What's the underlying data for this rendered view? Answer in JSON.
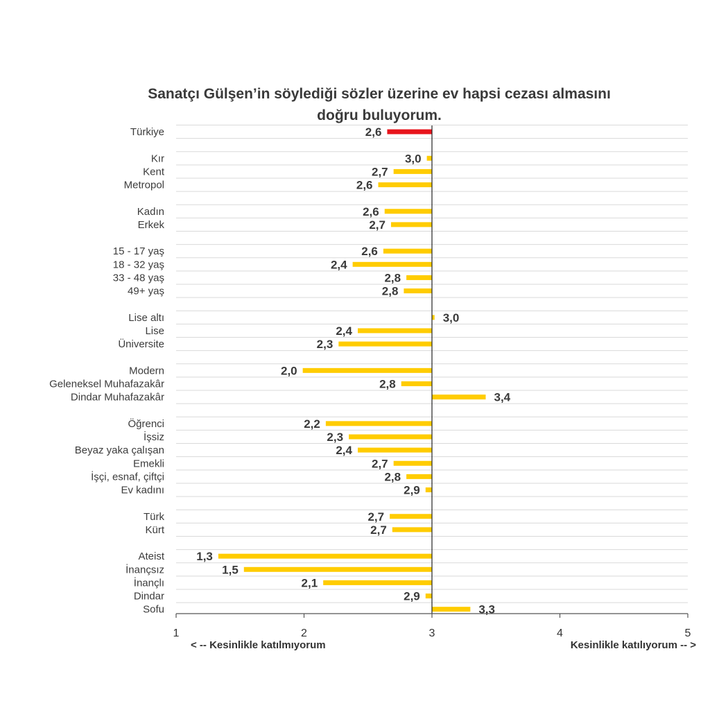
{
  "chart_data": {
    "type": "bar",
    "orientation": "horizontal",
    "title_lines": [
      "Sanatçı Gülşen’in söylediği sözler üzerine ev hapsi cezası almasını",
      "doğru buluyorum."
    ],
    "xlim": [
      1,
      5
    ],
    "xticks": [
      "1",
      "2",
      "3",
      "4",
      "5"
    ],
    "reference_value": 3,
    "left_label": "< -- Kesinlikle katılmıyorum",
    "right_label": "Kesinlikle katılıyorum -- >",
    "highlight_color": "#e8141c",
    "bar_color": "#ffcc00",
    "groups": [
      {
        "items": [
          {
            "label": "Türkiye",
            "value": 2.65,
            "display": "2,6",
            "highlight": true
          }
        ]
      },
      {
        "items": [
          {
            "label": "Kır",
            "value": 2.96,
            "display": "3,0"
          },
          {
            "label": "Kent",
            "value": 2.7,
            "display": "2,7"
          },
          {
            "label": "Metropol",
            "value": 2.58,
            "display": "2,6"
          }
        ]
      },
      {
        "items": [
          {
            "label": "Kadın",
            "value": 2.63,
            "display": "2,6"
          },
          {
            "label": "Erkek",
            "value": 2.68,
            "display": "2,7"
          }
        ]
      },
      {
        "items": [
          {
            "label": "15 - 17 yaş",
            "value": 2.62,
            "display": "2,6"
          },
          {
            "label": "18 - 32 yaş",
            "value": 2.38,
            "display": "2,4"
          },
          {
            "label": "33 - 48 yaş",
            "value": 2.8,
            "display": "2,8"
          },
          {
            "label": "49+ yaş",
            "value": 2.78,
            "display": "2,8"
          }
        ]
      },
      {
        "items": [
          {
            "label": "Lise altı",
            "value": 3.02,
            "display": "3,0"
          },
          {
            "label": "Lise",
            "value": 2.42,
            "display": "2,4"
          },
          {
            "label": "Üniversite",
            "value": 2.27,
            "display": "2,3"
          }
        ]
      },
      {
        "items": [
          {
            "label": "Modern",
            "value": 1.99,
            "display": "2,0"
          },
          {
            "label": "Geleneksel Muhafazakâr",
            "value": 2.76,
            "display": "2,8"
          },
          {
            "label": "Dindar Muhafazakâr",
            "value": 3.42,
            "display": "3,4"
          }
        ]
      },
      {
        "items": [
          {
            "label": "Öğrenci",
            "value": 2.17,
            "display": "2,2"
          },
          {
            "label": "İşsiz",
            "value": 2.35,
            "display": "2,3"
          },
          {
            "label": "Beyaz yaka çalışan",
            "value": 2.42,
            "display": "2,4"
          },
          {
            "label": "Emekli",
            "value": 2.7,
            "display": "2,7"
          },
          {
            "label": "İşçi, esnaf, çiftçi",
            "value": 2.8,
            "display": "2,8"
          },
          {
            "label": "Ev kadını",
            "value": 2.95,
            "display": "2,9"
          }
        ]
      },
      {
        "items": [
          {
            "label": "Türk",
            "value": 2.67,
            "display": "2,7"
          },
          {
            "label": "Kürt",
            "value": 2.69,
            "display": "2,7"
          }
        ]
      },
      {
        "items": [
          {
            "label": "Ateist",
            "value": 1.33,
            "display": "1,3"
          },
          {
            "label": "İnançsız",
            "value": 1.53,
            "display": "1,5"
          },
          {
            "label": "İnançlı",
            "value": 2.15,
            "display": "2,1"
          },
          {
            "label": "Dindar",
            "value": 2.95,
            "display": "2,9"
          },
          {
            "label": "Sofu",
            "value": 3.3,
            "display": "3,3"
          }
        ]
      }
    ]
  }
}
